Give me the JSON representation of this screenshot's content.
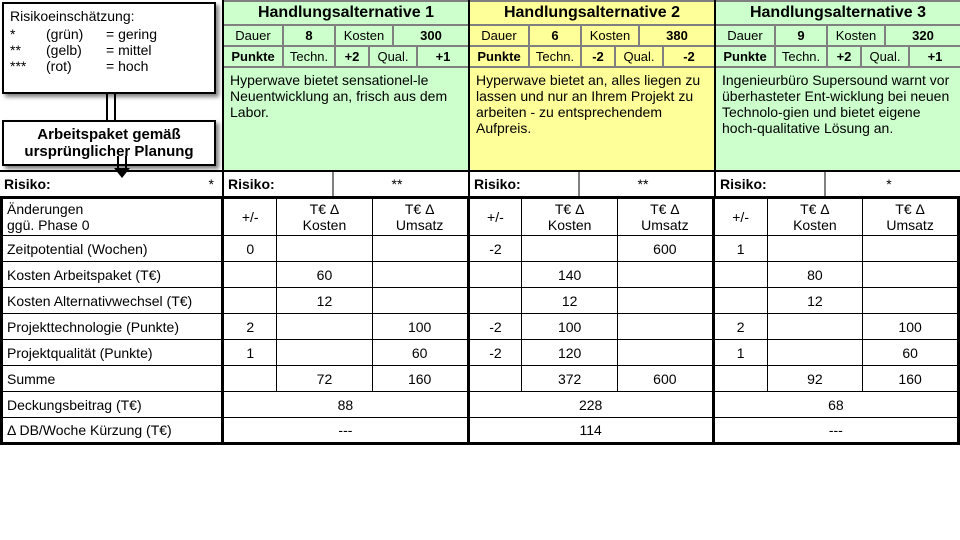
{
  "colors": {
    "alt1_bg": "#ccffcc",
    "alt2_bg": "#ffff99",
    "alt3_bg": "#ccffcc",
    "grid": "#808080",
    "frame": "#000000",
    "dash": "---"
  },
  "legend": {
    "title": "Risikoeinschätzung:",
    "rows": [
      {
        "stars": "*",
        "color": "(grün)",
        "eq": "= gering"
      },
      {
        "stars": "**",
        "color": "(gelb)",
        "eq": "= mittel"
      },
      {
        "stars": "***",
        "color": "(rot)",
        "eq": "= hoch"
      }
    ]
  },
  "wp_label_line1": "Arbeitspaket gemäß",
  "wp_label_line2": "ursprünglicher Planung",
  "risk_label": "Risiko:",
  "risk_base_stars": "*",
  "alt_headers": {
    "dauer": "Dauer",
    "kosten": "Kosten",
    "punkte": "Punkte",
    "techn": "Techn.",
    "qual": "Qual."
  },
  "alts": [
    {
      "title": "Handlungsalternative 1",
      "dauer": "8",
      "kosten": "300",
      "techn": "+2",
      "qual": "+1",
      "desc": "Hyperwave bietet sensationel-le Neuentwicklung an, frisch aus dem Labor.",
      "risk_stars": "**",
      "bg": "#ccffcc"
    },
    {
      "title": "Handlungsalternative 2",
      "dauer": "6",
      "kosten": "380",
      "techn": "-2",
      "qual": "-2",
      "desc": "Hyperwave bietet an, alles liegen zu lassen und nur an Ihrem Projekt zu arbeiten - zu entsprechendem Aufpreis.",
      "risk_stars": "**",
      "bg": "#ffff99"
    },
    {
      "title": "Handlungsalternative 3",
      "dauer": "9",
      "kosten": "320",
      "techn": "+2",
      "qual": "+1",
      "desc": "Ingenieurbüro Supersound warnt vor überhasteter Ent-wicklung bei neuen Technolo-gien und bietet eigene hoch-qualitative Lösung an.",
      "risk_stars": "*",
      "bg": "#ccffcc"
    }
  ],
  "table": {
    "head_line1": "Änderungen",
    "head_line2": "ggü. Phase 0",
    "col_pm": "+/-",
    "col_k1": "T€ Δ",
    "col_k2": "Kosten",
    "col_u1": "T€ Δ",
    "col_u2": "Umsatz",
    "rows": [
      {
        "label": "Zeitpotential (Wochen)",
        "a1": {
          "pm": "0",
          "k": "",
          "u": ""
        },
        "a2": {
          "pm": "-2",
          "k": "",
          "u": "600"
        },
        "a3": {
          "pm": "1",
          "k": "",
          "u": ""
        }
      },
      {
        "label": "Kosten Arbeitspaket (T€)",
        "a1": {
          "pm": "",
          "k": "60",
          "u": ""
        },
        "a2": {
          "pm": "",
          "k": "140",
          "u": ""
        },
        "a3": {
          "pm": "",
          "k": "80",
          "u": ""
        }
      },
      {
        "label": "Kosten Alternativwechsel (T€)",
        "a1": {
          "pm": "",
          "k": "12",
          "u": ""
        },
        "a2": {
          "pm": "",
          "k": "12",
          "u": ""
        },
        "a3": {
          "pm": "",
          "k": "12",
          "u": ""
        }
      },
      {
        "label": "Projekttechnologie (Punkte)",
        "a1": {
          "pm": "2",
          "k": "",
          "u": "100"
        },
        "a2": {
          "pm": "-2",
          "k": "100",
          "u": ""
        },
        "a3": {
          "pm": "2",
          "k": "",
          "u": "100"
        }
      },
      {
        "label": "Projektqualität (Punkte)",
        "a1": {
          "pm": "1",
          "k": "",
          "u": "60"
        },
        "a2": {
          "pm": "-2",
          "k": "120",
          "u": ""
        },
        "a3": {
          "pm": "1",
          "k": "",
          "u": "60"
        }
      },
      {
        "label": "Summe",
        "a1": {
          "pm": "",
          "k": "72",
          "u": "160"
        },
        "a2": {
          "pm": "",
          "k": "372",
          "u": "600"
        },
        "a3": {
          "pm": "",
          "k": "92",
          "u": "160"
        }
      }
    ],
    "db_label": "Deckungsbeitrag (T€)",
    "db": {
      "a1": "88",
      "a2": "228",
      "a3": "68"
    },
    "dbw_label": "Δ DB/Woche Kürzung (T€)",
    "dbw": {
      "a1": "---",
      "a2": "114",
      "a3": "---"
    }
  }
}
